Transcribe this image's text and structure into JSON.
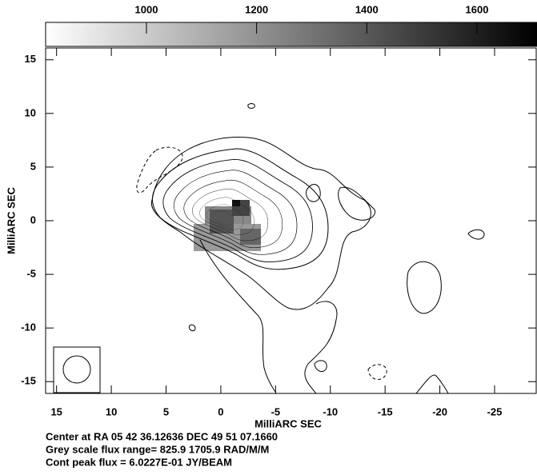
{
  "chart_data": {
    "type": "contour",
    "xlabel": "MilliARC SEC",
    "ylabel": "MilliARC SEC",
    "xlim": [
      16,
      -28.8
    ],
    "ylim": [
      -16.1,
      16.1
    ],
    "xticks": [
      15,
      10,
      5,
      0,
      -5,
      -10,
      -15,
      -20,
      -25
    ],
    "yticks": [
      -15,
      -10,
      -5,
      0,
      5,
      10,
      15
    ],
    "colorbar": {
      "lim": [
        817,
        1709
      ],
      "ticks": [
        1000,
        1200,
        1400,
        1600
      ]
    },
    "notes": [
      "Center at RA 05 42 36.12636  DEC 49 51 07.1660",
      "Grey scale flux range=   825.9  1705.9     RAD/M/M",
      "Cont peak flux =  6.0227E-01 JY/BEAM"
    ]
  }
}
